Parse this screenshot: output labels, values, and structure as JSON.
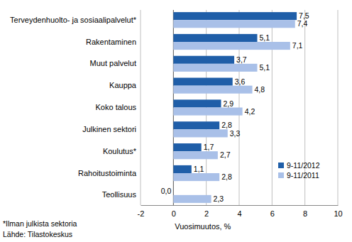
{
  "chart_data": {
    "type": "bar",
    "orientation": "horizontal",
    "categories": [
      "Terveydenhuolto- ja sosiaalipalvelut*",
      "Rakentaminen",
      "Muut palvelut",
      "Kauppa",
      "Koko talous",
      "Julkinen sektori",
      "Koulutus*",
      "Rahoitustoiminta",
      "Teollisuus"
    ],
    "series": [
      {
        "name": "9-11/2012",
        "color": "#1f5ea8",
        "values": [
          7.5,
          5.1,
          3.7,
          3.6,
          2.9,
          2.8,
          1.7,
          1.1,
          0.0
        ],
        "value_labels": [
          "7,5",
          "5,1",
          "3,7",
          "3,6",
          "2,9",
          "2,8",
          "1,7",
          "1,1",
          "0,0"
        ]
      },
      {
        "name": "9-11/2011",
        "color": "#a9c0e8",
        "values": [
          7.4,
          7.1,
          5.1,
          4.8,
          4.2,
          3.3,
          2.7,
          2.8,
          2.3
        ],
        "value_labels": [
          "7,4",
          "7,1",
          "5,1",
          "4,8",
          "4,2",
          "3,3",
          "2,7",
          "2,8",
          "2,3"
        ]
      }
    ],
    "x_label": "Vuosimuutos, %",
    "xlim": [
      -2,
      10
    ],
    "xticks": [
      -2,
      0,
      2,
      4,
      6,
      8,
      10
    ],
    "grid": true,
    "data_labels": true,
    "legend": "lower right",
    "annotations": [
      "*Ilman julkista sektoria",
      "Lähde: Tilastokeskus"
    ]
  }
}
